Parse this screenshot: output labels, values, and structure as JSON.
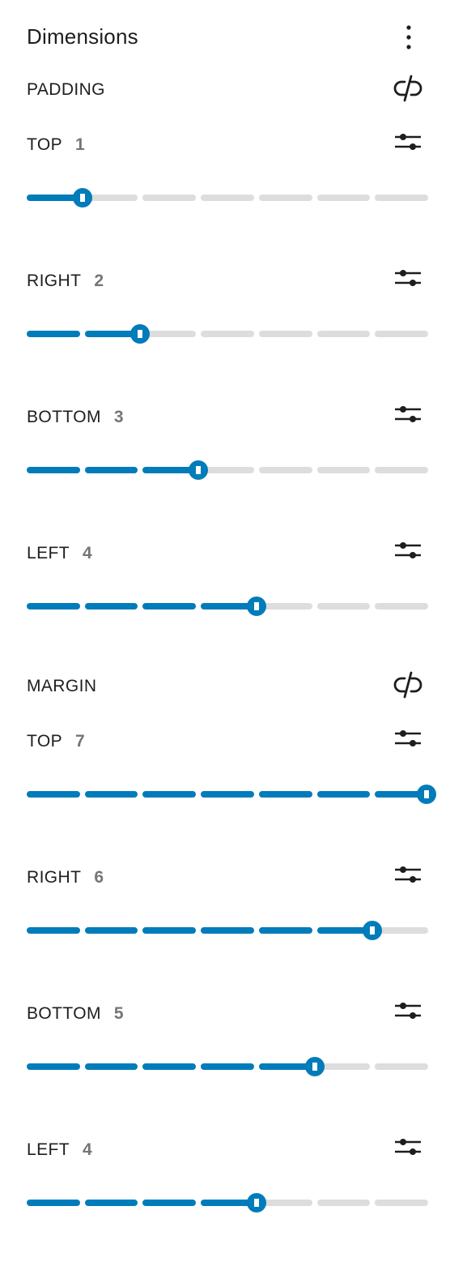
{
  "panel": {
    "title": "Dimensions",
    "menu_icon": "more-vertical-icon"
  },
  "colors": {
    "accent": "#007cba",
    "track": "#dddddd",
    "text": "#1e1e1e",
    "muted": "#757575"
  },
  "padding": {
    "label": "PADDING",
    "link_icon": "unlink-icon",
    "sides": [
      {
        "name": "TOP",
        "value": "1",
        "level": 1,
        "max": 7
      },
      {
        "name": "RIGHT",
        "value": "2",
        "level": 2,
        "max": 7
      },
      {
        "name": "BOTTOM",
        "value": "3",
        "level": 3,
        "max": 7
      },
      {
        "name": "LEFT",
        "value": "4",
        "level": 4,
        "max": 7
      }
    ]
  },
  "margin": {
    "label": "MARGIN",
    "link_icon": "unlink-icon",
    "sides": [
      {
        "name": "TOP",
        "value": "7",
        "level": 7,
        "max": 7
      },
      {
        "name": "RIGHT",
        "value": "6",
        "level": 6,
        "max": 7
      },
      {
        "name": "BOTTOM",
        "value": "5",
        "level": 5,
        "max": 7
      },
      {
        "name": "LEFT",
        "value": "4",
        "level": 4,
        "max": 7
      }
    ]
  }
}
